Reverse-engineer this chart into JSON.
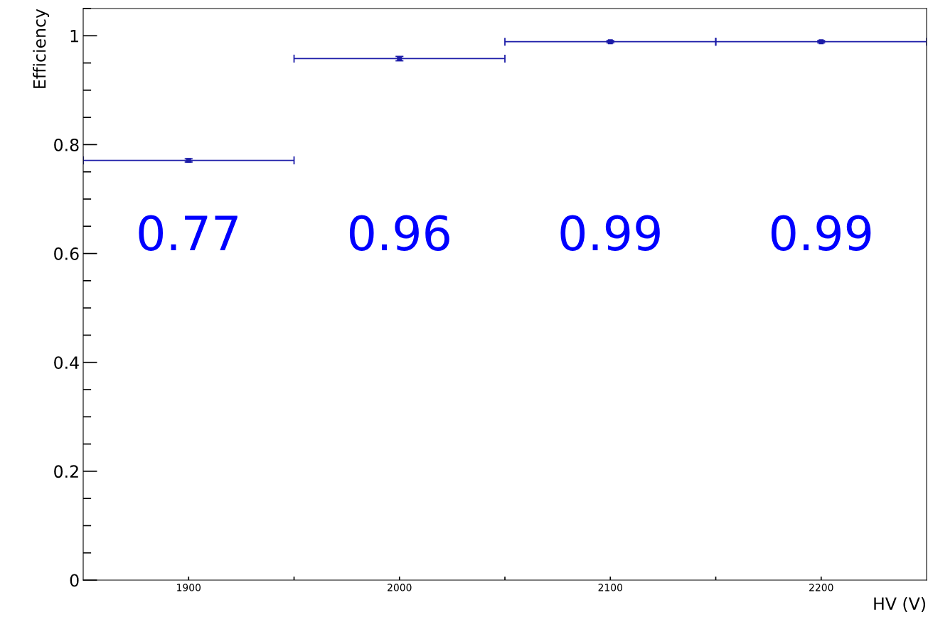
{
  "chart_data": {
    "type": "scatter",
    "xlabel": "HV (V)",
    "ylabel": "Efficiency",
    "x": [
      1900,
      2000,
      2100,
      2200
    ],
    "series": [
      {
        "color": "#1c1ca8",
        "values": [
          0.771,
          0.958,
          0.989,
          0.989
        ],
        "xerrors": [
          50,
          50,
          50,
          50
        ],
        "errors": [
          0.003,
          0.004,
          0.002,
          0.002
        ]
      }
    ],
    "annotations": [
      "0.77",
      "0.96",
      "0.99",
      "0.99"
    ],
    "xlim": [
      1850,
      2250
    ],
    "ylim": [
      0,
      1.05
    ],
    "xticks": [
      {
        "value": 1900,
        "label": "1900"
      },
      {
        "value": 1950,
        "label": null
      },
      {
        "value": 2000,
        "label": "2000"
      },
      {
        "value": 2050,
        "label": null
      },
      {
        "value": 2100,
        "label": "2100"
      },
      {
        "value": 2150,
        "label": null
      },
      {
        "value": 2200,
        "label": "2200"
      }
    ],
    "yticks": [
      0,
      0.2,
      0.4,
      0.6,
      0.8,
      1
    ],
    "marker": "square",
    "grid": false,
    "legend": false
  }
}
